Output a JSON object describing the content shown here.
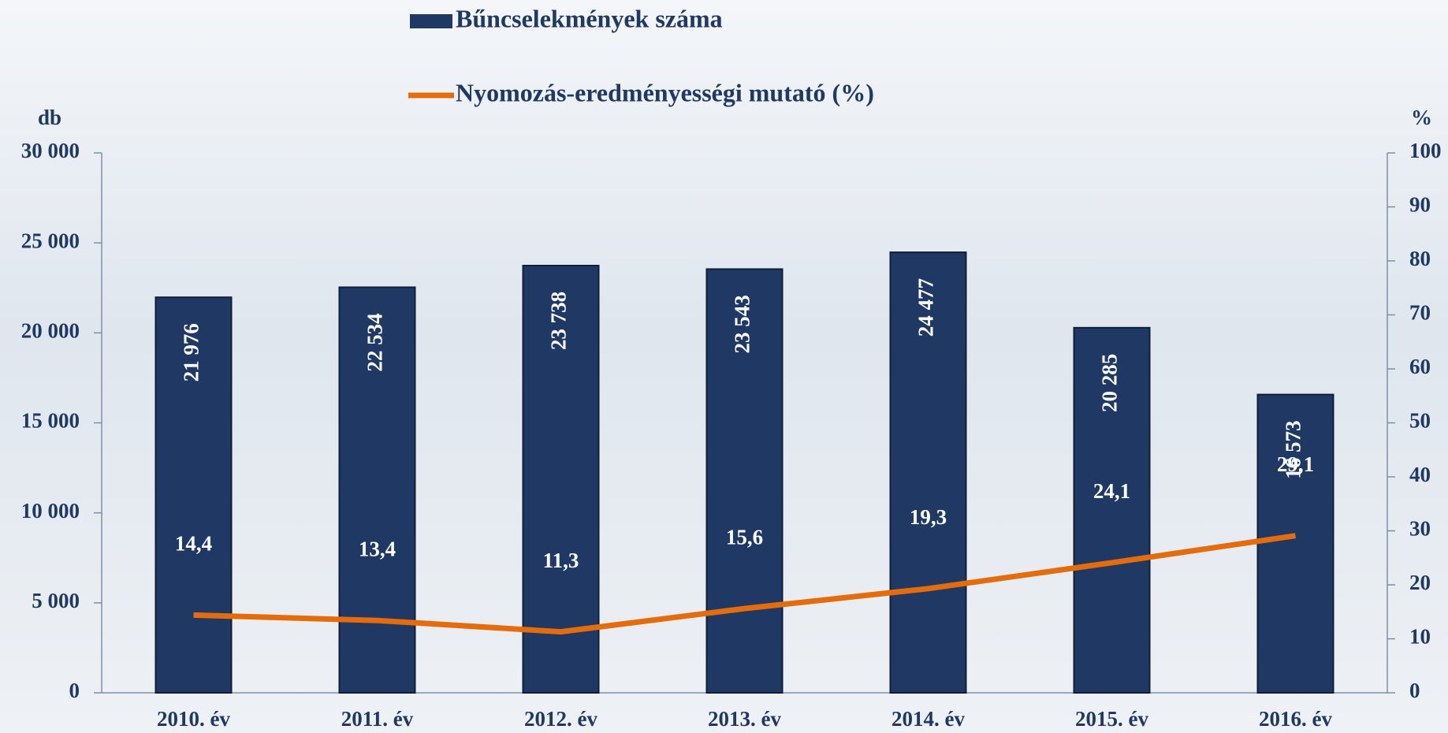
{
  "chart_data": {
    "type": "bar",
    "categories": [
      "2010. év",
      "2011. év",
      "2012. év",
      "2013. év",
      "2014. év",
      "2015. év",
      "2016. év"
    ],
    "ylabel": "db",
    "y2label": "%",
    "ylim": [
      0,
      30000
    ],
    "yticks": [
      0,
      {
        "value": 5000,
        "label": "5 000"
      },
      {
        "value": 10000,
        "label": "10 000"
      },
      {
        "value": 15000,
        "label": "15 000"
      },
      {
        "value": 20000,
        "label": "20 000"
      },
      {
        "value": 25000,
        "label": "25 000"
      },
      {
        "value": 30000,
        "label": "30 000"
      }
    ],
    "y2lim": [
      0,
      100
    ],
    "y2ticks": [
      0,
      10,
      20,
      30,
      40,
      50,
      60,
      70,
      80,
      90,
      100
    ],
    "series": [
      {
        "name": "Bűncselekmények száma",
        "type": "bar",
        "color": "#1f3864",
        "values": [
          21976,
          22534,
          23738,
          23543,
          24477,
          20285,
          16573
        ],
        "value_labels": [
          "21 976",
          "22 534",
          "23 738",
          "23 543",
          "24 477",
          "20 285",
          "16 573"
        ]
      },
      {
        "name": "Nyomozás-eredményességi mutató (%)",
        "type": "line",
        "axis": "y2",
        "color": "#e46c0a",
        "values": [
          14.4,
          13.4,
          11.3,
          15.6,
          19.3,
          24.1,
          29.1
        ],
        "value_labels": [
          "14,4",
          "13,4",
          "11,3",
          "15,6",
          "19,3",
          "24,1",
          "29,1"
        ]
      }
    ]
  }
}
